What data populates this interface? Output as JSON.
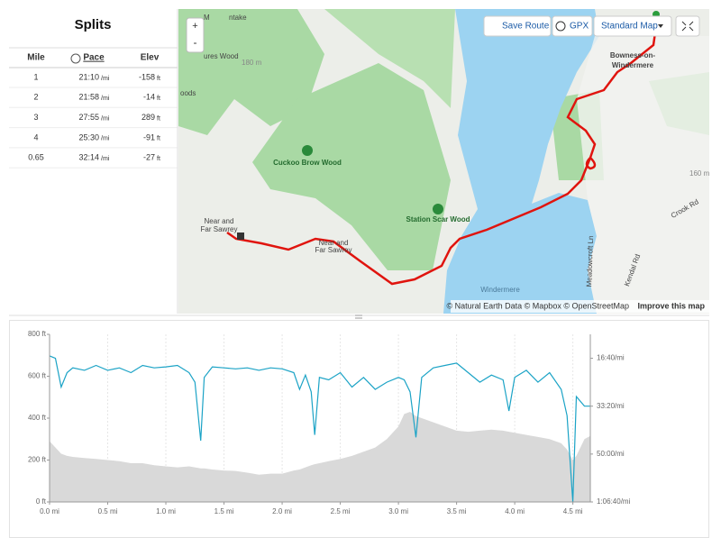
{
  "splits": {
    "title": "Splits",
    "columns": [
      "Mile",
      "Pace",
      "Elev"
    ],
    "rows": [
      [
        "1",
        "21:10",
        "/mi",
        "-158",
        "ft"
      ],
      [
        "2",
        "21:58",
        "/mi",
        "-14",
        "ft"
      ],
      [
        "3",
        "27:55",
        "/mi",
        "289",
        "ft"
      ],
      [
        "4",
        "25:30",
        "/mi",
        "-91",
        "ft"
      ],
      [
        "0.65",
        "32:14",
        "/mi",
        "-27",
        "ft"
      ]
    ]
  },
  "map": {
    "buttons": [
      "Save Route",
      "GPX",
      "Standard Map"
    ],
    "zoom": [
      "+",
      "-"
    ],
    "places": [
      [
        "Bowness-on-",
        "Windermere"
      ],
      [
        "Cuckoo Brow Wood"
      ],
      [
        "Station Scar Wood"
      ],
      [
        "Near and",
        "Far Sawrey"
      ],
      [
        "Near and",
        "Far Sawrey"
      ],
      [
        "Windermere"
      ],
      [
        "Crook Rd"
      ],
      [
        "Kendal Rd"
      ],
      [
        "Meadowcroft Ln"
      ],
      [
        "180 m"
      ],
      [
        "160 m"
      ],
      [
        "ures Wood"
      ],
      [
        "oods"
      ],
      [
        "M",
        "ntake"
      ]
    ],
    "attribution": "© Natural Earth Data © Mapbox © OpenStreetMap",
    "improve": "Improve this map"
  },
  "chart_data": {
    "type": "line",
    "grid": true,
    "x": [
      0,
      0.05,
      0.1,
      0.15,
      0.2,
      0.3,
      0.4,
      0.5,
      0.6,
      0.7,
      0.8,
      0.9,
      1.0,
      1.1,
      1.2,
      1.25,
      1.3,
      1.33,
      1.4,
      1.5,
      1.6,
      1.7,
      1.8,
      1.9,
      2.0,
      2.1,
      2.15,
      2.2,
      2.25,
      2.28,
      2.32,
      2.4,
      2.5,
      2.6,
      2.7,
      2.8,
      2.9,
      3.0,
      3.05,
      3.1,
      3.15,
      3.2,
      3.3,
      3.4,
      3.5,
      3.6,
      3.7,
      3.8,
      3.9,
      3.95,
      4.0,
      4.1,
      4.2,
      4.3,
      4.4,
      4.45,
      4.5,
      4.53,
      4.6,
      4.65
    ],
    "series": [
      {
        "name": "Elevation",
        "color": "#d9d9d9",
        "values": [
          290,
          260,
          230,
          220,
          215,
          210,
          205,
          200,
          195,
          185,
          185,
          175,
          170,
          165,
          170,
          165,
          160,
          160,
          155,
          150,
          148,
          140,
          130,
          135,
          135,
          150,
          155,
          165,
          175,
          180,
          185,
          195,
          205,
          220,
          240,
          260,
          300,
          360,
          420,
          430,
          410,
          400,
          380,
          360,
          340,
          335,
          340,
          345,
          340,
          335,
          330,
          320,
          310,
          300,
          280,
          250,
          200,
          220,
          300,
          315
        ]
      },
      {
        "name": "Pace",
        "color": "#1ba3c6",
        "axis": "y2",
        "values": [
          950,
          1000,
          1600,
          1300,
          1200,
          1250,
          1150,
          1250,
          1200,
          1300,
          1150,
          1200,
          1180,
          1150,
          1300,
          1500,
          2720,
          1400,
          1180,
          1200,
          1220,
          1200,
          1250,
          1200,
          1220,
          1300,
          1650,
          1350,
          1700,
          2600,
          1400,
          1450,
          1300,
          1600,
          1400,
          1650,
          1500,
          1400,
          1450,
          1700,
          2650,
          1400,
          1200,
          1150,
          1100,
          1300,
          1500,
          1350,
          1450,
          2100,
          1400,
          1250,
          1500,
          1300,
          1650,
          2200,
          4000,
          1800,
          2000,
          2000
        ]
      }
    ],
    "xlim": [
      0,
      4.65
    ],
    "xticks": [
      {
        "value": 0,
        "label": "0.0 mi"
      },
      {
        "value": 0.5,
        "label": "0.5 mi"
      },
      {
        "value": 1,
        "label": "1.0 mi"
      },
      {
        "value": 1.5,
        "label": "1.5 mi"
      },
      {
        "value": 2,
        "label": "2.0 mi"
      },
      {
        "value": 2.5,
        "label": "2.5 mi"
      },
      {
        "value": 3,
        "label": "3.0 mi"
      },
      {
        "value": 3.5,
        "label": "3.5 mi"
      },
      {
        "value": 4,
        "label": "4.0 mi"
      },
      {
        "value": 4.5,
        "label": "4.5 mi"
      }
    ],
    "ylim": [
      0,
      800
    ],
    "yticks": [
      {
        "value": 0,
        "label": "0 ft"
      },
      {
        "value": 200,
        "label": "200 ft"
      },
      {
        "value": 400,
        "label": "400 ft"
      },
      {
        "value": 600,
        "label": "600 ft"
      },
      {
        "value": 800,
        "label": "800 ft"
      }
    ],
    "y2lim": [
      500,
      4000
    ],
    "y2_reversed": true,
    "y2ticks": [
      {
        "value": 1000,
        "label": "16:40/mi"
      },
      {
        "value": 2000,
        "label": "33:20/mi"
      },
      {
        "value": 3000,
        "label": "50:00/mi"
      },
      {
        "value": 4000,
        "label": "1:06:40/mi"
      }
    ]
  }
}
